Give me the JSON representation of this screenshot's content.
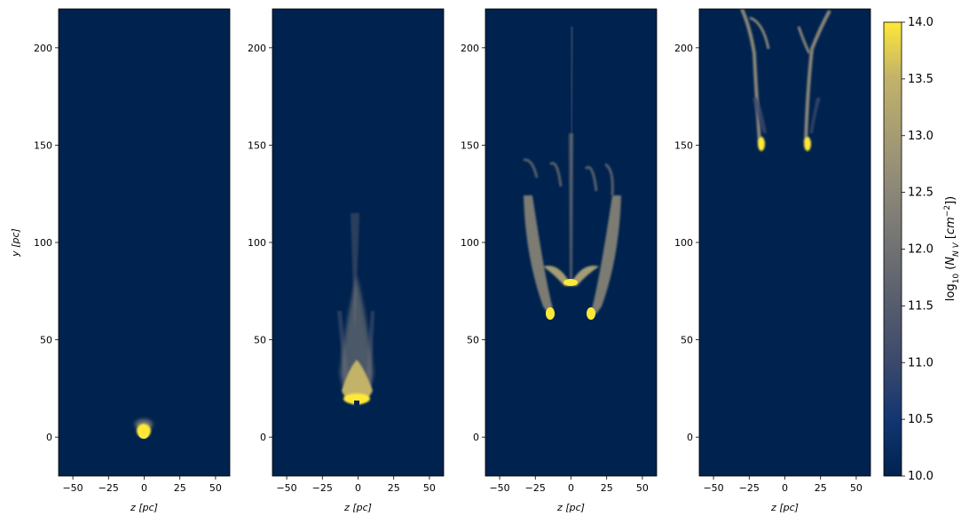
{
  "chart_data": {
    "type": "heatmap",
    "colormap": "cividis",
    "panels": [
      {
        "xlabel": "z [pc]",
        "ylabel": "y [pc]",
        "xlim": [
          -60,
          60
        ],
        "ylim": [
          -20,
          220
        ],
        "xticks": [
          -50,
          -25,
          0,
          25,
          50
        ],
        "yticks": [
          0,
          50,
          100,
          150,
          200
        ],
        "features": [
          {
            "z": 0,
            "y": 2,
            "log_value": 14.0,
            "desc": "compact cloud core"
          }
        ]
      },
      {
        "xlabel": "z [pc]",
        "ylabel": "",
        "xlim": [
          -60,
          60
        ],
        "ylim": [
          -20,
          220
        ],
        "xticks": [
          -50,
          -25,
          0,
          25,
          50
        ],
        "yticks": [
          0,
          50,
          100,
          150,
          200
        ],
        "features": [
          {
            "z": 0,
            "y": 18,
            "log_value": 14.0,
            "desc": "flattened cloud head"
          },
          {
            "z": 0,
            "y": 60,
            "log_value": 11.5,
            "desc": "tail extending to ~115 pc"
          }
        ]
      },
      {
        "xlabel": "z [pc]",
        "ylabel": "",
        "xlim": [
          -60,
          60
        ],
        "ylim": [
          -20,
          220
        ],
        "xticks": [
          -50,
          -25,
          0,
          25,
          50
        ],
        "yticks": [
          0,
          50,
          100,
          150,
          200
        ],
        "features": [
          {
            "z": 0,
            "y": 79,
            "log_value": 14.0,
            "desc": "central fan"
          },
          {
            "z": -16,
            "y": 61,
            "log_value": 14.0,
            "desc": "left lobe"
          },
          {
            "z": 16,
            "y": 61,
            "log_value": 14.0,
            "desc": "right lobe"
          },
          {
            "z": 0,
            "y": 140,
            "log_value": 12.5,
            "desc": "filaments to ~210 pc"
          }
        ]
      },
      {
        "xlabel": "z [pc]",
        "ylabel": "",
        "xlim": [
          -60,
          60
        ],
        "ylim": [
          -20,
          220
        ],
        "xticks": [
          -50,
          -25,
          0,
          25,
          50
        ],
        "yticks": [
          0,
          50,
          100,
          150,
          200
        ],
        "features": [
          {
            "z": -15,
            "y": 146,
            "log_value": 14.0,
            "desc": "left clump"
          },
          {
            "z": 16,
            "y": 147,
            "log_value": 14.0,
            "desc": "right clump"
          }
        ]
      }
    ],
    "colorbar": {
      "label": "log10 (N_NV [cm^-2])",
      "range": [
        10.0,
        14.0
      ],
      "ticks": [
        "10.0",
        "10.5",
        "11.0",
        "11.5",
        "12.0",
        "12.5",
        "13.0",
        "13.5",
        "14.0"
      ],
      "colors": {
        "low": "#00224e",
        "mid": "#7c7b78",
        "high": "#fee838"
      }
    }
  }
}
